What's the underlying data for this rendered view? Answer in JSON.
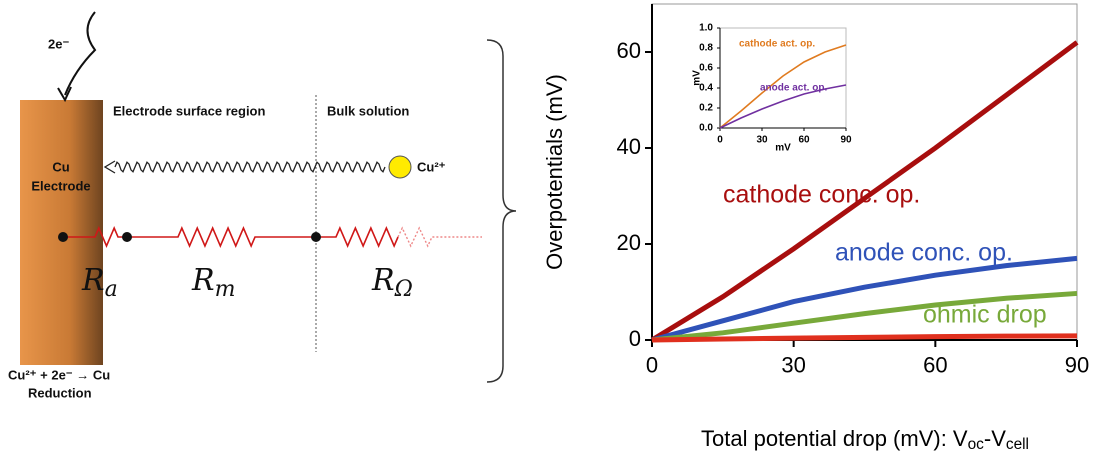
{
  "diagram": {
    "electron": "2e⁻",
    "regions": [
      "Electrode surface region",
      "Bulk solution"
    ],
    "electrode": [
      "Cu",
      "Electrode"
    ],
    "ion": "Cu²⁺",
    "resistors": [
      {
        "symbol": "R",
        "sub": "a"
      },
      {
        "symbol": "R",
        "sub": "m"
      },
      {
        "symbol": "R",
        "sub": "Ω"
      }
    ],
    "reaction": "Cu²⁺ + 2e⁻ → Cu",
    "reaction_label": "Reduction"
  },
  "chart_data": [
    {
      "type": "line",
      "ylabel": "Overpotentials (mV)",
      "xlabel": [
        "Total potential drop (mV): V",
        "oc",
        "-V",
        "cell"
      ],
      "x": [
        0,
        15,
        30,
        45,
        60,
        75,
        90
      ],
      "xlim": [
        0,
        90
      ],
      "xticks": [
        0,
        30,
        60,
        90
      ],
      "ylim": [
        0,
        70
      ],
      "yticks": [
        0,
        20,
        40,
        60
      ],
      "series": [
        {
          "name": "cathode conc. op.",
          "color": "#a80e0e",
          "values": [
            0,
            9,
            19,
            29.5,
            40,
            51,
            62
          ]
        },
        {
          "name": "anode conc. op.",
          "color": "#2f52b8",
          "values": [
            0,
            4,
            8,
            11,
            13.5,
            15.5,
            17
          ]
        },
        {
          "name": "ohmic drop",
          "color": "#78a93a",
          "values": [
            0,
            1.5,
            3.5,
            5.5,
            7.3,
            8.7,
            9.7
          ]
        },
        {
          "color": "#e0301e",
          "values": [
            0,
            0.2,
            0.4,
            0.55,
            0.7,
            0.8,
            0.85
          ]
        }
      ]
    },
    {
      "type": "line",
      "ylabel": "mV",
      "xlabel": "mV",
      "x": [
        0,
        15,
        30,
        45,
        60,
        75,
        90
      ],
      "xlim": [
        0,
        90
      ],
      "xticks": [
        0,
        30,
        60,
        90
      ],
      "ylim": [
        0,
        1
      ],
      "yticks": [
        {
          "value": 0,
          "label": "0.0"
        },
        0.2,
        0.4,
        0.6,
        0.8,
        {
          "value": 1,
          "label": "1.0"
        }
      ],
      "series": [
        {
          "name": "cathode act. op.",
          "color": "#e07b20",
          "values": [
            0,
            0.17,
            0.35,
            0.52,
            0.66,
            0.76,
            0.83
          ]
        },
        {
          "name": "anode act. op.",
          "color": "#7030a0",
          "values": [
            0,
            0.1,
            0.19,
            0.27,
            0.34,
            0.39,
            0.43
          ]
        }
      ]
    }
  ]
}
